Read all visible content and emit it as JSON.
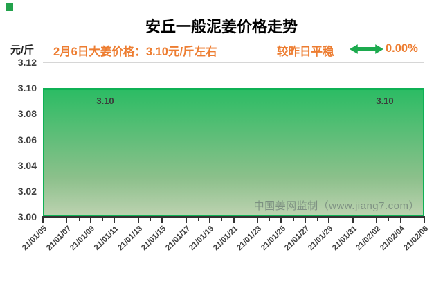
{
  "page": {
    "logo_color": "#23a24c"
  },
  "header": {
    "title": "安丘一般泥姜价格走势"
  },
  "subheader": {
    "unit_label": "元/斤",
    "price_note": "2月6日大姜价格：3.10元/斤左右",
    "trend_note": "较昨日平稳",
    "trend_icon": "double-arrow-horizontal-icon",
    "change_percent": "0.00%",
    "accent_color": "#ed7d31",
    "arrow_color": "#1caa4e"
  },
  "watermark": "中国姜网监制（www.jiang7.com）",
  "chart_data": {
    "type": "area",
    "title": "安丘一般泥姜价格走势",
    "ylabel": "元/斤",
    "categories": [
      "21/01/05",
      "21/01/07",
      "21/01/09",
      "21/01/11",
      "21/01/13",
      "21/01/15",
      "21/01/17",
      "21/01/19",
      "21/01/21",
      "21/01/23",
      "21/01/25",
      "21/01/27",
      "21/01/29",
      "21/01/31",
      "21/02/02",
      "21/02/04",
      "21/02/06"
    ],
    "values": [
      3.1,
      3.1,
      3.1,
      3.1,
      3.1,
      3.1,
      3.1,
      3.1,
      3.1,
      3.1,
      3.1,
      3.1,
      3.1,
      3.1,
      3.1,
      3.1,
      3.1
    ],
    "ylim": [
      3.0,
      3.12
    ],
    "ytick_interval": 0.02,
    "yticks": [
      "3.12",
      "3.10",
      "3.08",
      "3.06",
      "3.04",
      "3.02",
      "3.00"
    ],
    "point_labels": {
      "first": "3.10",
      "last": "3.10"
    },
    "grid": true,
    "x_tick_frequency_days": 1,
    "x_label_frequency_days": 2,
    "x_label_rotation_deg": 45,
    "line_color": "#0fb155",
    "fill_top_color": "#2cbc64",
    "fill_bottom_color": "#bcd2b0",
    "legend": "none"
  }
}
